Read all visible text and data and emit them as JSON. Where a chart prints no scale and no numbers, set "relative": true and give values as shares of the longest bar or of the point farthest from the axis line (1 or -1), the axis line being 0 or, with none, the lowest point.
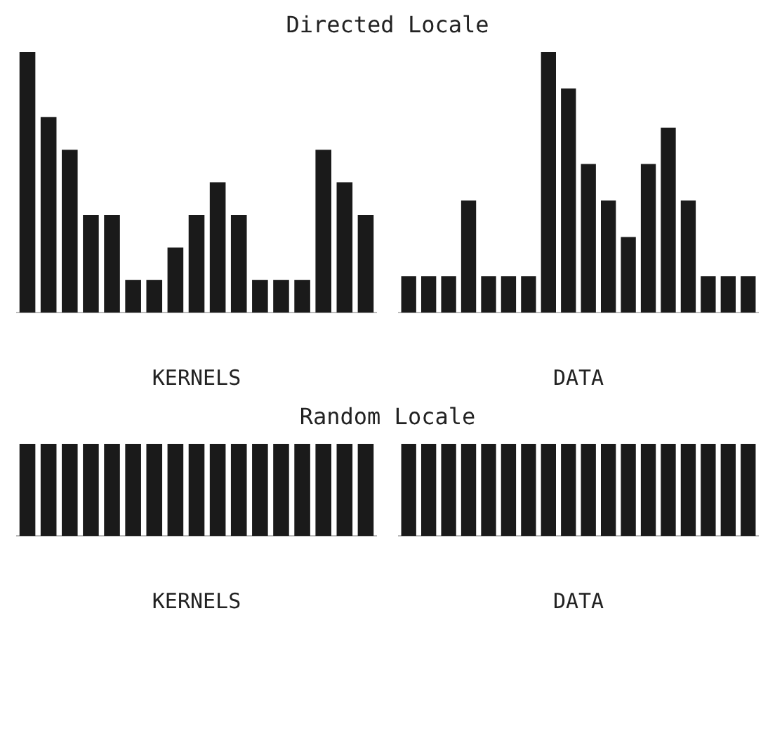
{
  "chart_data": [
    {
      "type": "bar",
      "title": "Directed Locale",
      "xlabel": "KERNELS",
      "relative": true,
      "categories": [
        null,
        null,
        null,
        null,
        null,
        null,
        null,
        null,
        null,
        null,
        null,
        null,
        null,
        null,
        null,
        null,
        null
      ],
      "color": "#1a1a1a",
      "grid": false,
      "values": [
        1,
        0.75,
        0.625,
        0.375,
        0.375,
        0.125,
        0.125,
        0.25,
        0.375,
        0.5,
        0.375,
        0.125,
        0.125,
        0.125,
        0.625,
        0.5,
        0.375
      ]
    },
    {
      "type": "bar",
      "xlabel": "DATA",
      "relative": true,
      "categories": [
        null,
        null,
        null,
        null,
        null,
        null,
        null,
        null,
        null,
        null,
        null,
        null,
        null,
        null,
        null,
        null,
        null,
        null
      ],
      "color": "#1a1a1a",
      "grid": false,
      "values": [
        0.14,
        0.14,
        0.14,
        0.43,
        0.14,
        0.14,
        0.14,
        1,
        0.86,
        0.57,
        0.43,
        0.29,
        0.57,
        0.71,
        0.43,
        0.14,
        0.14,
        0.14
      ]
    },
    {
      "type": "bar",
      "title": "Random Locale",
      "xlabel": "KERNELS",
      "relative": true,
      "categories": [
        null,
        null,
        null,
        null,
        null,
        null,
        null,
        null,
        null,
        null,
        null,
        null,
        null,
        null,
        null,
        null,
        null
      ],
      "color": "#1a1a1a",
      "grid": false,
      "values": [
        1,
        1,
        1,
        1,
        1,
        1,
        1,
        1,
        1,
        1,
        1,
        1,
        1,
        1,
        1,
        1,
        1
      ]
    },
    {
      "type": "bar",
      "xlabel": "DATA",
      "relative": true,
      "categories": [
        null,
        null,
        null,
        null,
        null,
        null,
        null,
        null,
        null,
        null,
        null,
        null,
        null,
        null,
        null,
        null,
        null,
        null
      ],
      "color": "#1a1a1a",
      "grid": false,
      "values": [
        1,
        1,
        1,
        1,
        1,
        1,
        1,
        1,
        1,
        1,
        1,
        1,
        1,
        1,
        1,
        1,
        1,
        1
      ]
    }
  ]
}
